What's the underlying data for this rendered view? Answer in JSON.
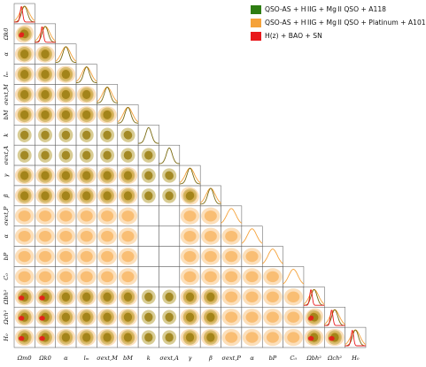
{
  "legend": {
    "entries": [
      {
        "label": "QSO-AS + H IIG + Mg II QSO + A118",
        "color": "#2e7d12"
      },
      {
        "label": "QSO-AS + H IIG + Mg II QSO + Platinum + A101",
        "color": "#f5a23a"
      },
      {
        "label": "H(z) + BAO + SN",
        "color": "#e8191c"
      }
    ]
  },
  "chart_data": {
    "type": "corner",
    "parameters": [
      "Ωm0",
      "Ωk0",
      "α",
      "lₘ",
      "σext,M",
      "bM",
      "k",
      "σext,A",
      "γ",
      "β",
      "σext,P",
      "α",
      "bP",
      "C₀",
      "Ωbh²",
      "Ωch²",
      "H₀"
    ],
    "x_axis_labels": [
      "Ωm0",
      "Ωk0",
      "α",
      "lₘ",
      "σext,M",
      "bM",
      "k",
      "σext,A",
      "γ",
      "β",
      "σext,P",
      "α",
      "bP",
      "C₀",
      "Ωbh²",
      "Ωch²",
      "H₀"
    ],
    "y_axis_labels": [
      "Ωk0",
      "α",
      "lₘ",
      "σext,M",
      "bM",
      "k",
      "σext,A",
      "γ",
      "β",
      "σext,P",
      "α",
      "bP",
      "C₀",
      "Ωbh²",
      "Ωch²",
      "H₀"
    ],
    "series": [
      {
        "name": "QSO-AS + HIIG + MgII QSO + A118",
        "color": "#2e7d12",
        "parameters_constrained": [
          0,
          1,
          2,
          3,
          4,
          5,
          6,
          7,
          8,
          9,
          14,
          15,
          16
        ]
      },
      {
        "name": "QSO-AS + HIIG + MgII QSO + Platinum + A101",
        "color": "#f5a23a",
        "parameters_constrained": [
          0,
          1,
          2,
          3,
          4,
          5,
          8,
          9,
          10,
          11,
          12,
          13,
          14,
          15,
          16
        ]
      },
      {
        "name": "H(z) + BAO + SN",
        "color": "#e8191c",
        "parameters_constrained": [
          0,
          1,
          14,
          15,
          16
        ]
      }
    ],
    "contour_levels": [
      "1σ",
      "2σ"
    ],
    "grid": false,
    "legend_position": "top-right"
  }
}
